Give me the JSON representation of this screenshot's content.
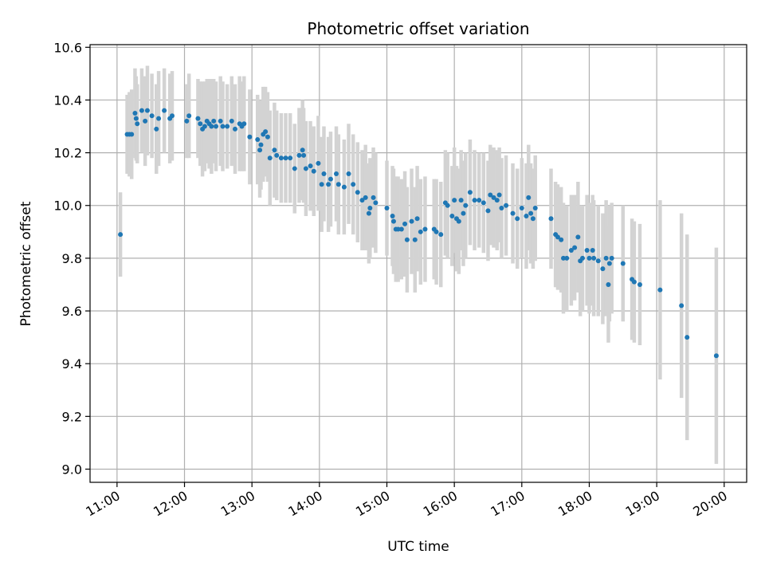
{
  "chart_data": {
    "type": "scatter",
    "title": "Photometric offset variation",
    "xlabel": "UTC time",
    "ylabel": "Photometric offset",
    "x_is_time": true,
    "xlim": [
      "10:36",
      "20:20"
    ],
    "ylim": [
      8.95,
      10.61
    ],
    "x_ticks": [
      "11:00",
      "12:00",
      "13:00",
      "14:00",
      "15:00",
      "16:00",
      "17:00",
      "18:00",
      "19:00",
      "20:00"
    ],
    "y_ticks": [
      "9.0",
      "9.2",
      "9.4",
      "9.6",
      "9.8",
      "10.0",
      "10.2",
      "10.4",
      "10.6"
    ],
    "grid": true,
    "colors": {
      "marker": "#1f77b4",
      "error_bar": "#d3d3d3",
      "grid": "#b0b0b0",
      "axes": "#000000"
    },
    "series": [
      {
        "points": [
          [
            "11:03",
            9.89,
            0.16
          ],
          [
            "11:09",
            10.27,
            0.15
          ],
          [
            "11:11",
            10.27,
            0.16
          ],
          [
            "11:13",
            10.27,
            0.17
          ],
          [
            "11:16",
            10.35,
            0.17
          ],
          [
            "11:17",
            10.33,
            0.16
          ],
          [
            "11:18",
            10.31,
            0.15
          ],
          [
            "11:22",
            10.36,
            0.16
          ],
          [
            "11:25",
            10.32,
            0.17
          ],
          [
            "11:27",
            10.36,
            0.17
          ],
          [
            "11:31",
            10.34,
            0.16
          ],
          [
            "11:35",
            10.29,
            0.17
          ],
          [
            "11:37",
            10.33,
            0.18
          ],
          [
            "11:42",
            10.36,
            0.16
          ],
          [
            "11:47",
            10.33,
            0.17
          ],
          [
            "11:49",
            10.34,
            0.17
          ],
          [
            "12:02",
            10.32,
            0.14
          ],
          [
            "12:04",
            10.34,
            0.16
          ],
          [
            "12:12",
            10.33,
            0.15
          ],
          [
            "12:14",
            10.31,
            0.16
          ],
          [
            "12:16",
            10.29,
            0.18
          ],
          [
            "12:18",
            10.3,
            0.17
          ],
          [
            "12:20",
            10.32,
            0.16
          ],
          [
            "12:22",
            10.31,
            0.17
          ],
          [
            "12:24",
            10.3,
            0.18
          ],
          [
            "12:26",
            10.32,
            0.16
          ],
          [
            "12:28",
            10.3,
            0.17
          ],
          [
            "12:32",
            10.32,
            0.17
          ],
          [
            "12:34",
            10.3,
            0.17
          ],
          [
            "12:38",
            10.3,
            0.16
          ],
          [
            "12:42",
            10.32,
            0.17
          ],
          [
            "12:45",
            10.29,
            0.17
          ],
          [
            "12:49",
            10.31,
            0.18
          ],
          [
            "12:51",
            10.3,
            0.17
          ],
          [
            "12:53",
            10.31,
            0.18
          ],
          [
            "12:58",
            10.26,
            0.18
          ],
          [
            "13:05",
            10.25,
            0.17
          ],
          [
            "13:07",
            10.21,
            0.18
          ],
          [
            "13:08",
            10.23,
            0.17
          ],
          [
            "13:10",
            10.27,
            0.18
          ],
          [
            "13:12",
            10.28,
            0.17
          ],
          [
            "13:14",
            10.26,
            0.17
          ],
          [
            "13:16",
            10.18,
            0.18
          ],
          [
            "13:20",
            10.21,
            0.18
          ],
          [
            "13:22",
            10.19,
            0.17
          ],
          [
            "13:26",
            10.18,
            0.17
          ],
          [
            "13:30",
            10.18,
            0.17
          ],
          [
            "13:34",
            10.18,
            0.17
          ],
          [
            "13:38",
            10.14,
            0.17
          ],
          [
            "13:42",
            10.19,
            0.18
          ],
          [
            "13:45",
            10.21,
            0.19
          ],
          [
            "13:46",
            10.19,
            0.18
          ],
          [
            "13:48",
            10.14,
            0.18
          ],
          [
            "13:52",
            10.15,
            0.17
          ],
          [
            "13:55",
            10.13,
            0.17
          ],
          [
            "13:59",
            10.16,
            0.18
          ],
          [
            "14:02",
            10.08,
            0.18
          ],
          [
            "14:04",
            10.12,
            0.18
          ],
          [
            "14:08",
            10.08,
            0.18
          ],
          [
            "14:10",
            10.1,
            0.18
          ],
          [
            "14:15",
            10.12,
            0.18
          ],
          [
            "14:17",
            10.08,
            0.19
          ],
          [
            "14:22",
            10.07,
            0.18
          ],
          [
            "14:26",
            10.12,
            0.19
          ],
          [
            "14:30",
            10.08,
            0.19
          ],
          [
            "14:34",
            10.05,
            0.19
          ],
          [
            "14:38",
            10.02,
            0.19
          ],
          [
            "14:41",
            10.03,
            0.2
          ],
          [
            "14:44",
            9.97,
            0.19
          ],
          [
            "14:45",
            9.99,
            0.19
          ],
          [
            "14:48",
            10.03,
            0.19
          ],
          [
            "14:50",
            10.01,
            0.19
          ],
          [
            "15:00",
            9.99,
            0.18
          ],
          [
            "15:05",
            9.96,
            0.19
          ],
          [
            "15:06",
            9.94,
            0.2
          ],
          [
            "15:08",
            9.91,
            0.2
          ],
          [
            "15:10",
            9.91,
            0.2
          ],
          [
            "15:13",
            9.91,
            0.19
          ],
          [
            "15:16",
            9.93,
            0.2
          ],
          [
            "15:18",
            9.87,
            0.2
          ],
          [
            "15:22",
            9.94,
            0.2
          ],
          [
            "15:25",
            9.87,
            0.2
          ],
          [
            "15:27",
            9.95,
            0.2
          ],
          [
            "15:30",
            9.9,
            0.2
          ],
          [
            "15:34",
            9.91,
            0.2
          ],
          [
            "15:42",
            9.91,
            0.19
          ],
          [
            "15:44",
            9.9,
            0.2
          ],
          [
            "15:48",
            9.89,
            0.2
          ],
          [
            "15:52",
            10.01,
            0.2
          ],
          [
            "15:54",
            10.0,
            0.2
          ],
          [
            "15:58",
            9.96,
            0.19
          ],
          [
            "16:00",
            10.02,
            0.2
          ],
          [
            "16:02",
            9.95,
            0.2
          ],
          [
            "16:04",
            9.94,
            0.2
          ],
          [
            "16:06",
            10.02,
            0.19
          ],
          [
            "16:08",
            9.97,
            0.2
          ],
          [
            "16:10",
            10.0,
            0.2
          ],
          [
            "16:14",
            10.05,
            0.2
          ],
          [
            "16:18",
            10.02,
            0.19
          ],
          [
            "16:22",
            10.02,
            0.18
          ],
          [
            "16:26",
            10.01,
            0.19
          ],
          [
            "16:30",
            9.98,
            0.19
          ],
          [
            "16:32",
            10.04,
            0.19
          ],
          [
            "16:35",
            10.03,
            0.19
          ],
          [
            "16:38",
            10.02,
            0.19
          ],
          [
            "16:40",
            10.04,
            0.18
          ],
          [
            "16:42",
            9.99,
            0.19
          ],
          [
            "16:46",
            10.0,
            0.19
          ],
          [
            "16:52",
            9.97,
            0.19
          ],
          [
            "16:56",
            9.95,
            0.19
          ],
          [
            "17:00",
            9.99,
            0.19
          ],
          [
            "17:04",
            9.96,
            0.2
          ],
          [
            "17:06",
            10.03,
            0.2
          ],
          [
            "17:08",
            9.97,
            0.19
          ],
          [
            "17:10",
            9.95,
            0.19
          ],
          [
            "17:12",
            9.99,
            0.2
          ],
          [
            "17:26",
            9.95,
            0.19
          ],
          [
            "17:30",
            9.89,
            0.2
          ],
          [
            "17:32",
            9.88,
            0.2
          ],
          [
            "17:35",
            9.87,
            0.2
          ],
          [
            "17:37",
            9.8,
            0.21
          ],
          [
            "17:40",
            9.8,
            0.2
          ],
          [
            "17:44",
            9.83,
            0.21
          ],
          [
            "17:47",
            9.84,
            0.2
          ],
          [
            "17:50",
            9.88,
            0.21
          ],
          [
            "17:52",
            9.79,
            0.21
          ],
          [
            "17:54",
            9.8,
            0.2
          ],
          [
            "17:58",
            9.83,
            0.21
          ],
          [
            "18:00",
            9.8,
            0.21
          ],
          [
            "18:03",
            9.83,
            0.21
          ],
          [
            "18:04",
            9.8,
            0.22
          ],
          [
            "18:08",
            9.79,
            0.21
          ],
          [
            "18:12",
            9.76,
            0.21
          ],
          [
            "18:15",
            9.8,
            0.22
          ],
          [
            "18:17",
            9.7,
            0.22
          ],
          [
            "18:18",
            9.78,
            0.22
          ],
          [
            "18:20",
            9.8,
            0.21
          ],
          [
            "18:30",
            9.78,
            0.22
          ],
          [
            "18:38",
            9.72,
            0.23
          ],
          [
            "18:40",
            9.71,
            0.23
          ],
          [
            "18:45",
            9.7,
            0.23
          ],
          [
            "19:03",
            9.68,
            0.34
          ],
          [
            "19:22",
            9.62,
            0.35
          ],
          [
            "19:27",
            9.5,
            0.39
          ],
          [
            "19:53",
            9.43,
            0.41
          ]
        ]
      }
    ]
  }
}
